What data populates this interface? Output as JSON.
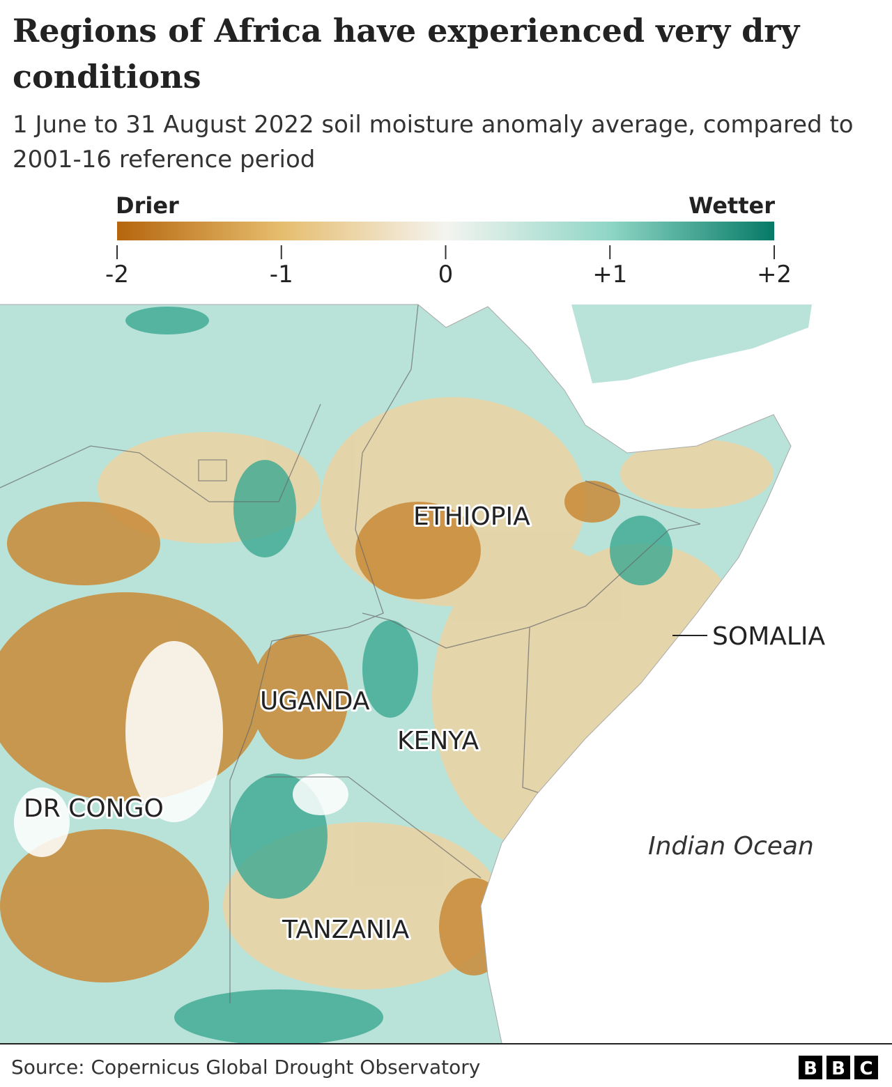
{
  "header": {
    "title": "Regions of Africa have experienced very dry conditions",
    "subtitle": "1 June to 31 August 2022 soil moisture anomaly average, compared to 2001-16 reference period"
  },
  "legend": {
    "low_label": "Drier",
    "high_label": "Wetter",
    "lim": [
      -2,
      2
    ],
    "ticks": [
      -2,
      -1,
      0,
      {
        "value": 1,
        "label": "+1"
      },
      {
        "value": 2,
        "label": "+2"
      }
    ],
    "colors": [
      "#b5650d",
      "#e6bd6e",
      "#f4f4f0",
      "#8fd6c6",
      "#057a66"
    ]
  },
  "map": {
    "labels": [
      "ETHIOPIA",
      "SOMALIA",
      "UGANDA",
      "KENYA",
      "DR CONGO",
      "TANZANIA"
    ],
    "ocean_label": "Indian Ocean"
  },
  "footer": {
    "source": "Source: Copernicus Global Drought Observatory",
    "logo": [
      "B",
      "B",
      "C"
    ]
  }
}
